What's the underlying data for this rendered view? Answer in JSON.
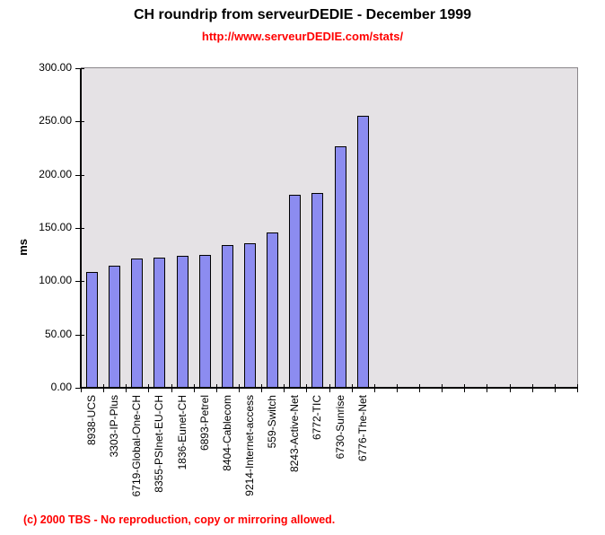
{
  "chart_data": {
    "type": "bar",
    "title": "CH roundrip from serveurDEDIE - December 1999",
    "subtitle_url": "http://www.serveurDEDIE.com/stats/",
    "ylabel": "ms",
    "ylim": [
      0,
      300
    ],
    "ytick_step": 50,
    "ytick_labels": [
      "300.00",
      "250.00",
      "200.00",
      "150.00",
      "100.00",
      "50.00",
      "0.00"
    ],
    "categories": [
      "8938-UCS",
      "3303-IP-Plus",
      "6719-Global-One-CH",
      "8355-PSInet-EU-CH",
      "1836-Eunet-CH",
      "6893-Petrel",
      "8404-Cablecom",
      "9214-Internet-access",
      "559-Switch",
      "8243-Active-Net",
      "6772-TIC",
      "6730-Sunrise",
      "6776-The-Net"
    ],
    "values": [
      109,
      115,
      121,
      122,
      124,
      125,
      134,
      136,
      146,
      181,
      183,
      227,
      255
    ],
    "total_category_slots": 22,
    "grid": "off",
    "legend": "none",
    "colors": {
      "bar_fill": "#8C8CF0",
      "bar_border": "#000000",
      "plot_bg": "#E5E2E5",
      "axis": "#000000",
      "red_text": "#FF0000"
    }
  },
  "footer": {
    "copyright": "(c) 2000 TBS - No reproduction, copy or mirroring allowed."
  }
}
